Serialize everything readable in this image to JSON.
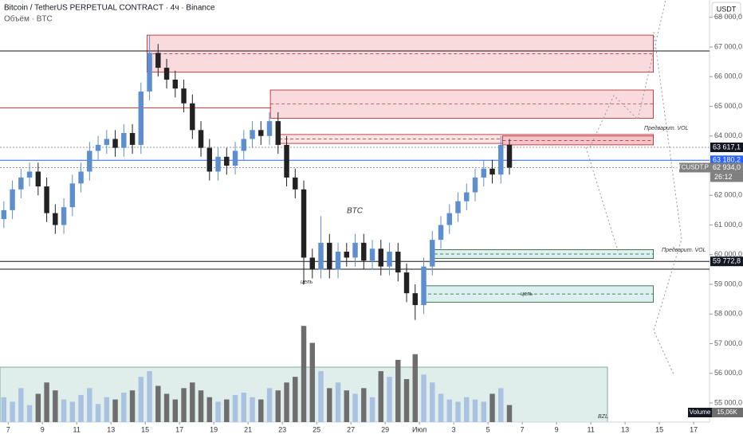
{
  "header": {
    "title": "Bitcoin / TetherUS PERPETUAL CONTRACT · 4ч · Binance",
    "indicator": "Объём · BTC",
    "currency": "USDT"
  },
  "chart_data": {
    "type": "candlestick",
    "ylim": [
      54356,
      68584
    ],
    "yticks": [
      {
        "value": 55000,
        "label": "55 000,0"
      },
      {
        "value": 56000,
        "label": "56 000,0"
      },
      {
        "value": 57000,
        "label": "57 000,0"
      },
      {
        "value": 58000,
        "label": "58 000,0"
      },
      {
        "value": 59000,
        "label": "59 000,0"
      },
      {
        "value": 60000,
        "label": "60 000,0"
      },
      {
        "value": 61000,
        "label": "61 000,0"
      },
      {
        "value": 62000,
        "label": "62 000,0"
      },
      {
        "value": 63000,
        "label": "63 000,0"
      },
      {
        "value": 64000,
        "label": "64 000,0"
      },
      {
        "value": 65000,
        "label": "65 000,0"
      },
      {
        "value": 66000,
        "label": "66 000,0"
      },
      {
        "value": 67000,
        "label": "67 000,0"
      },
      {
        "value": 68000,
        "label": "68 000,0"
      }
    ],
    "xlim": [
      -0.45,
      82.35
    ],
    "xticks": [
      {
        "value": 0.5,
        "label": "7"
      },
      {
        "value": 4.5,
        "label": "9"
      },
      {
        "value": 8.5,
        "label": "11"
      },
      {
        "value": 12.5,
        "label": "13"
      },
      {
        "value": 16.5,
        "label": "15"
      },
      {
        "value": 20.5,
        "label": "17"
      },
      {
        "value": 24.5,
        "label": "19"
      },
      {
        "value": 28.5,
        "label": "21"
      },
      {
        "value": 32.5,
        "label": "23"
      },
      {
        "value": 36.5,
        "label": "25"
      },
      {
        "value": 40.5,
        "label": "27"
      },
      {
        "value": 44.5,
        "label": "29"
      },
      {
        "value": 48.5,
        "label": "Июл"
      },
      {
        "value": 52.5,
        "label": "3"
      },
      {
        "value": 56.5,
        "label": "5"
      },
      {
        "value": 60.5,
        "label": "7"
      },
      {
        "value": 64.5,
        "label": "9"
      },
      {
        "value": 68.5,
        "label": "11"
      },
      {
        "value": 72.5,
        "label": "13"
      },
      {
        "value": 76.5,
        "label": "15"
      },
      {
        "value": 80.5,
        "label": "17"
      }
    ],
    "series": [
      {
        "name": "BTCUSDT.P",
        "up_color": "#5d8fce",
        "down_color": "#222222",
        "open": [
          61200,
          61500,
          62200,
          62600,
          62800,
          62300,
          61400,
          61000,
          61600,
          62400,
          62800,
          63500,
          63700,
          63900,
          63600,
          64100,
          63700,
          65500,
          66800,
          66300,
          65900,
          65600,
          65100,
          64200,
          63600,
          62800,
          63300,
          63000,
          63500,
          63900,
          64200,
          64000,
          64500,
          63700,
          62600,
          62200,
          59900,
          59500,
          60400,
          59500,
          60100,
          59900,
          60400,
          59800,
          60200,
          59600,
          60100,
          59400,
          58700,
          58300,
          59600,
          60500,
          61000,
          61400,
          61800,
          62100,
          62600,
          62900,
          62700,
          63700
        ],
        "high": [
          61800,
          62500,
          62900,
          63100,
          63100,
          62600,
          61700,
          61900,
          62700,
          63100,
          63800,
          64000,
          64200,
          64200,
          64400,
          64400,
          65800,
          67400,
          67100,
          66600,
          66200,
          65900,
          65400,
          64500,
          63900,
          63600,
          63600,
          63800,
          64200,
          64500,
          64500,
          64800,
          64800,
          64000,
          62900,
          62500,
          60200,
          61300,
          60700,
          60400,
          60400,
          60700,
          60700,
          60500,
          60500,
          60400,
          60400,
          59700,
          59000,
          59900,
          60800,
          61300,
          61700,
          62100,
          62400,
          62900,
          63200,
          63200,
          64000,
          63900
        ],
        "low": [
          60900,
          61200,
          61900,
          62300,
          62000,
          61100,
          60700,
          60700,
          61300,
          62100,
          62500,
          63200,
          63400,
          63300,
          63300,
          63400,
          63400,
          65200,
          66000,
          65600,
          65300,
          64800,
          63900,
          63300,
          62500,
          62500,
          62700,
          62700,
          63200,
          63600,
          63700,
          63700,
          63400,
          62300,
          61900,
          59000,
          59200,
          59200,
          59200,
          59200,
          59600,
          59600,
          59500,
          59500,
          59300,
          59300,
          59100,
          58400,
          57800,
          58000,
          59300,
          60200,
          60700,
          61100,
          61500,
          61800,
          62300,
          62400,
          62400,
          62700
        ],
        "close": [
          61500,
          62200,
          62600,
          62800,
          62300,
          61400,
          61000,
          61600,
          62400,
          62800,
          63500,
          63700,
          63900,
          63600,
          64100,
          63700,
          65500,
          66800,
          66300,
          65900,
          65600,
          65100,
          64200,
          63600,
          62800,
          63300,
          63000,
          63500,
          63900,
          64200,
          64000,
          64500,
          63700,
          62600,
          62200,
          59900,
          59500,
          60400,
          59500,
          60100,
          59900,
          60400,
          59800,
          60200,
          59600,
          60100,
          59400,
          58700,
          58300,
          59600,
          60500,
          61000,
          61400,
          61800,
          62100,
          62600,
          62900,
          62700,
          63700,
          62934
        ]
      }
    ],
    "volume": {
      "name": "Volume",
      "readout": "15,06K",
      "vlim": [
        0,
        95
      ],
      "up_color": "#a9c2e2",
      "down_color": "#6e6e6e",
      "values": [
        22,
        18,
        30,
        15,
        25,
        35,
        28,
        20,
        18,
        24,
        30,
        16,
        22,
        20,
        26,
        28,
        40,
        45,
        32,
        25,
        20,
        30,
        35,
        28,
        22,
        18,
        20,
        24,
        26,
        22,
        20,
        30,
        28,
        35,
        40,
        85,
        70,
        45,
        30,
        35,
        28,
        25,
        30,
        22,
        45,
        40,
        55,
        38,
        60,
        42,
        35,
        25,
        20,
        18,
        22,
        20,
        18,
        25,
        30,
        15.06
      ]
    },
    "zones": [
      {
        "low": 66150,
        "high": 67400,
        "x0": 16.7,
        "x1": 75.8,
        "fill": "#f9dadd",
        "stroke": "#b71c1c"
      },
      {
        "low": 64600,
        "high": 65550,
        "x0": 31.1,
        "x1": 75.8,
        "fill": "#f9dadd",
        "stroke": "#b71c1c"
      },
      {
        "low": 63750,
        "high": 64050,
        "x0": 32.1,
        "x1": 75.8,
        "fill": "#fbe4e6",
        "stroke": "#b71c1c"
      },
      {
        "low": 63700,
        "high": 64000,
        "x0": 58.2,
        "x1": 75.8,
        "fill": "#f4c6cb",
        "stroke": "#b71c1c"
      },
      {
        "low": 59870,
        "high": 60170,
        "x0": 50.25,
        "x1": 75.8,
        "fill": "#dcf0f2",
        "stroke": "#1b5e20"
      },
      {
        "low": 58400,
        "high": 58950,
        "x0": 48.85,
        "x1": 75.8,
        "fill": "#dcf0f2",
        "stroke": "#1b5e20"
      }
    ],
    "levels": [
      {
        "value": 66866,
        "color": "#131722"
      },
      {
        "value": 64946,
        "color": "#e53935",
        "x1": 31.2
      },
      {
        "value": 63617.1,
        "color": "#999999",
        "dash": true,
        "label": "63 617,1",
        "label_color": "#131722"
      },
      {
        "value": 63180.2,
        "color": "#2962ff",
        "label": "63 180,2",
        "label_color": "#2962ff"
      },
      {
        "value": 62934,
        "color": "#999999",
        "dash": true,
        "label": "62 934,0",
        "label_color": "#808080",
        "symbol": "BTCUSDT.P",
        "countdown": "26:12"
      },
      {
        "value": 59772.8,
        "color": "#131722",
        "label": "59 772,8",
        "label_color": "#131722"
      },
      {
        "value": 59510,
        "color": "#131722"
      }
    ],
    "annotations": [
      "Предварит. VOL",
      "Предварит. VOL",
      "цель",
      "цель",
      "BTC",
      "BZL"
    ]
  }
}
